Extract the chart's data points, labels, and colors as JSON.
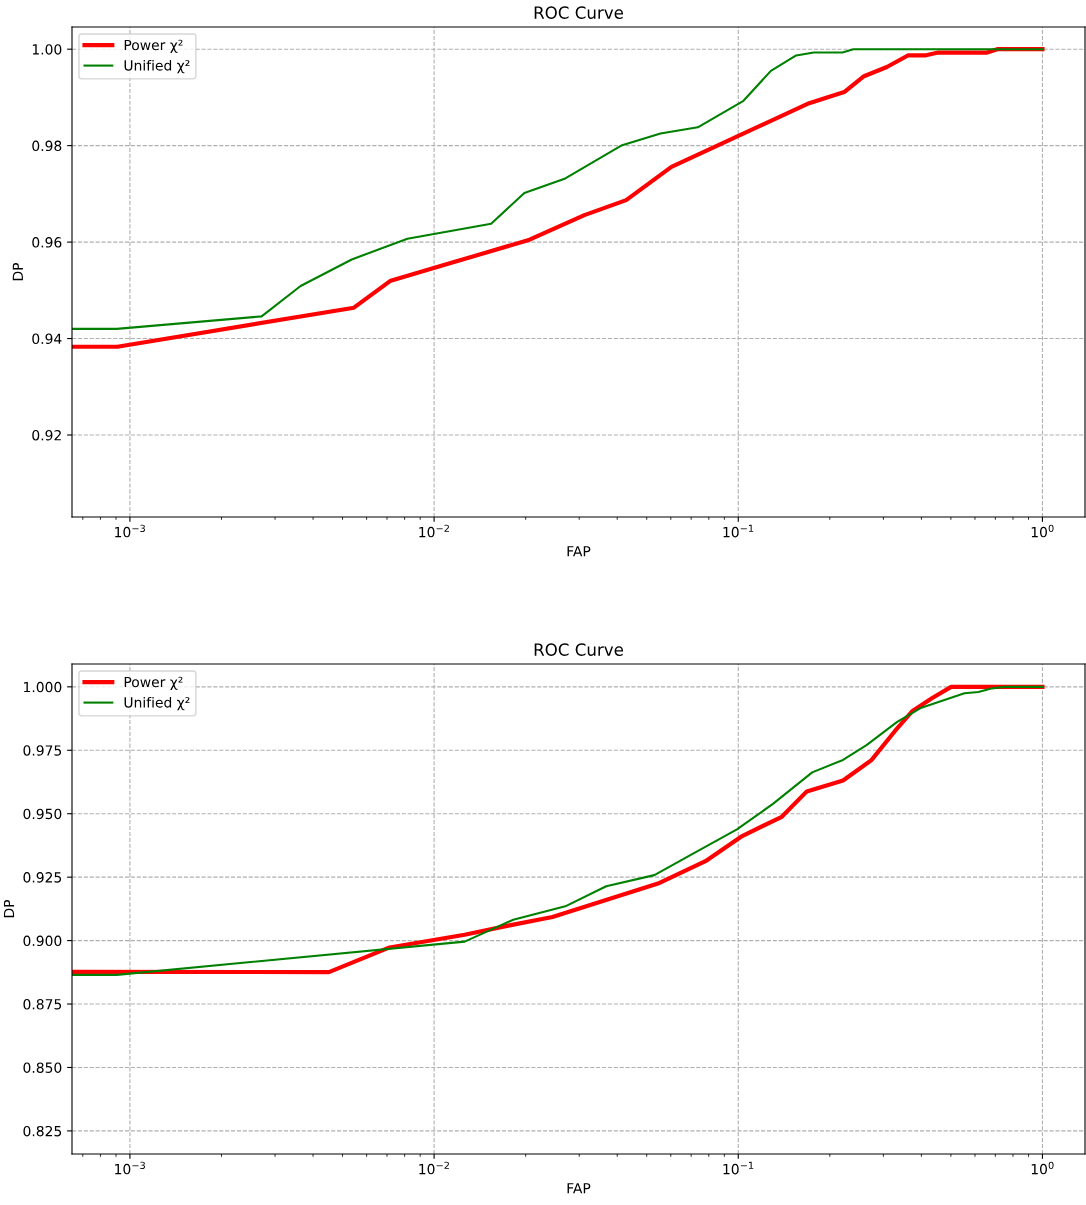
{
  "chart_data": [
    {
      "type": "line",
      "title": "ROC Curve",
      "xlabel": "FAP",
      "ylabel": "DP",
      "log": "x",
      "grid": true,
      "legend": "top left",
      "line_style": "solid",
      "marker": "none",
      "xlim": [
        0.000645,
        1.38
      ],
      "ylim": [
        0.903,
        1.0046
      ],
      "xticks": [
        {
          "value": 0.001,
          "label": "10$^{−3}$"
        },
        {
          "value": 0.01,
          "label": "10$^{−2}$"
        },
        {
          "value": 0.1,
          "label": "10$^{−1}$"
        },
        {
          "value": 1,
          "label": "10$^{0}$"
        }
      ],
      "yticks": [
        {
          "value": 0.92,
          "label": "0.92"
        },
        {
          "value": 0.94,
          "label": "0.94"
        },
        {
          "value": 0.96,
          "label": "0.96"
        },
        {
          "value": 0.98,
          "label": "0.98"
        },
        {
          "value": 1.0,
          "label": "1.00"
        }
      ],
      "series": [
        {
          "name": "Power χ²",
          "color": "#ff0000",
          "x": [
            0.000645,
            0.00091,
            0.00545,
            0.0072,
            0.0117,
            0.0206,
            0.0312,
            0.0428,
            0.0603,
            0.171,
            0.223,
            0.259,
            0.308,
            0.361,
            0.411,
            0.454,
            0.658,
            0.71,
            1.0
          ],
          "values": [
            0.9383,
            0.9383,
            0.9464,
            0.952,
            0.9559,
            0.9605,
            0.9656,
            0.9687,
            0.9756,
            0.9888,
            0.9911,
            0.9944,
            0.9963,
            0.9987,
            0.9987,
            0.9993,
            0.9993,
            1.0,
            1.0
          ]
        },
        {
          "name": "Unified χ²",
          "color": "#008000",
          "x": [
            0.000645,
            0.000905,
            0.00271,
            0.00364,
            0.00536,
            0.00817,
            0.0154,
            0.0198,
            0.027,
            0.0415,
            0.0555,
            0.0736,
            0.104,
            0.128,
            0.155,
            0.177,
            0.22,
            0.239,
            1.0
          ],
          "values": [
            0.942,
            0.942,
            0.9446,
            0.9509,
            0.9564,
            0.9607,
            0.9638,
            0.9702,
            0.9732,
            0.9801,
            0.9825,
            0.9838,
            0.9893,
            0.9955,
            0.9987,
            0.9993,
            0.9993,
            1.0,
            1.0
          ]
        }
      ]
    },
    {
      "type": "line",
      "title": "ROC Curve",
      "xlabel": "FAP",
      "ylabel": "DP",
      "log": "x",
      "grid": true,
      "legend": "top left",
      "line_style": "solid",
      "marker": "none",
      "xlim": [
        0.000645,
        1.38
      ],
      "ylim": [
        0.8159,
        1.009
      ],
      "xticks": [
        {
          "value": 0.001,
          "label": "10$^{−3}$"
        },
        {
          "value": 0.01,
          "label": "10$^{−2}$"
        },
        {
          "value": 0.1,
          "label": "10$^{−1}$"
        },
        {
          "value": 1,
          "label": "10$^{0}$"
        }
      ],
      "yticks": [
        {
          "value": 0.825,
          "label": "0.825"
        },
        {
          "value": 0.85,
          "label": "0.850"
        },
        {
          "value": 0.875,
          "label": "0.875"
        },
        {
          "value": 0.9,
          "label": "0.900"
        },
        {
          "value": 0.925,
          "label": "0.925"
        },
        {
          "value": 0.95,
          "label": "0.950"
        },
        {
          "value": 0.975,
          "label": "0.975"
        },
        {
          "value": 1.0,
          "label": "1.000"
        }
      ],
      "series": [
        {
          "name": "Power χ²",
          "color": "#ff0000",
          "x": [
            0.000645,
            0.00451,
            0.00714,
            0.0126,
            0.0177,
            0.0245,
            0.0551,
            0.078,
            0.103,
            0.139,
            0.168,
            0.221,
            0.274,
            0.327,
            0.374,
            0.433,
            0.501,
            1.0
          ],
          "values": [
            0.8877,
            0.8876,
            0.8973,
            0.9023,
            0.906,
            0.9093,
            0.9227,
            0.9313,
            0.9412,
            0.9488,
            0.9588,
            0.9631,
            0.9711,
            0.9825,
            0.9905,
            0.9955,
            1.0,
            1.0
          ]
        },
        {
          "name": "Unified χ²",
          "color": "#008000",
          "x": [
            0.000645,
            0.000905,
            0.0126,
            0.0182,
            0.027,
            0.0368,
            0.053,
            0.0703,
            0.099,
            0.13,
            0.175,
            0.221,
            0.264,
            0.333,
            0.4,
            0.554,
            0.616,
            0.683,
            0.755,
            1.0
          ],
          "values": [
            0.8865,
            0.8865,
            0.8996,
            0.9082,
            0.9135,
            0.9214,
            0.9258,
            0.934,
            0.9438,
            0.9539,
            0.9663,
            0.9712,
            0.977,
            0.9862,
            0.9918,
            0.9975,
            0.998,
            0.9994,
            1.0,
            1.0
          ]
        }
      ]
    }
  ]
}
